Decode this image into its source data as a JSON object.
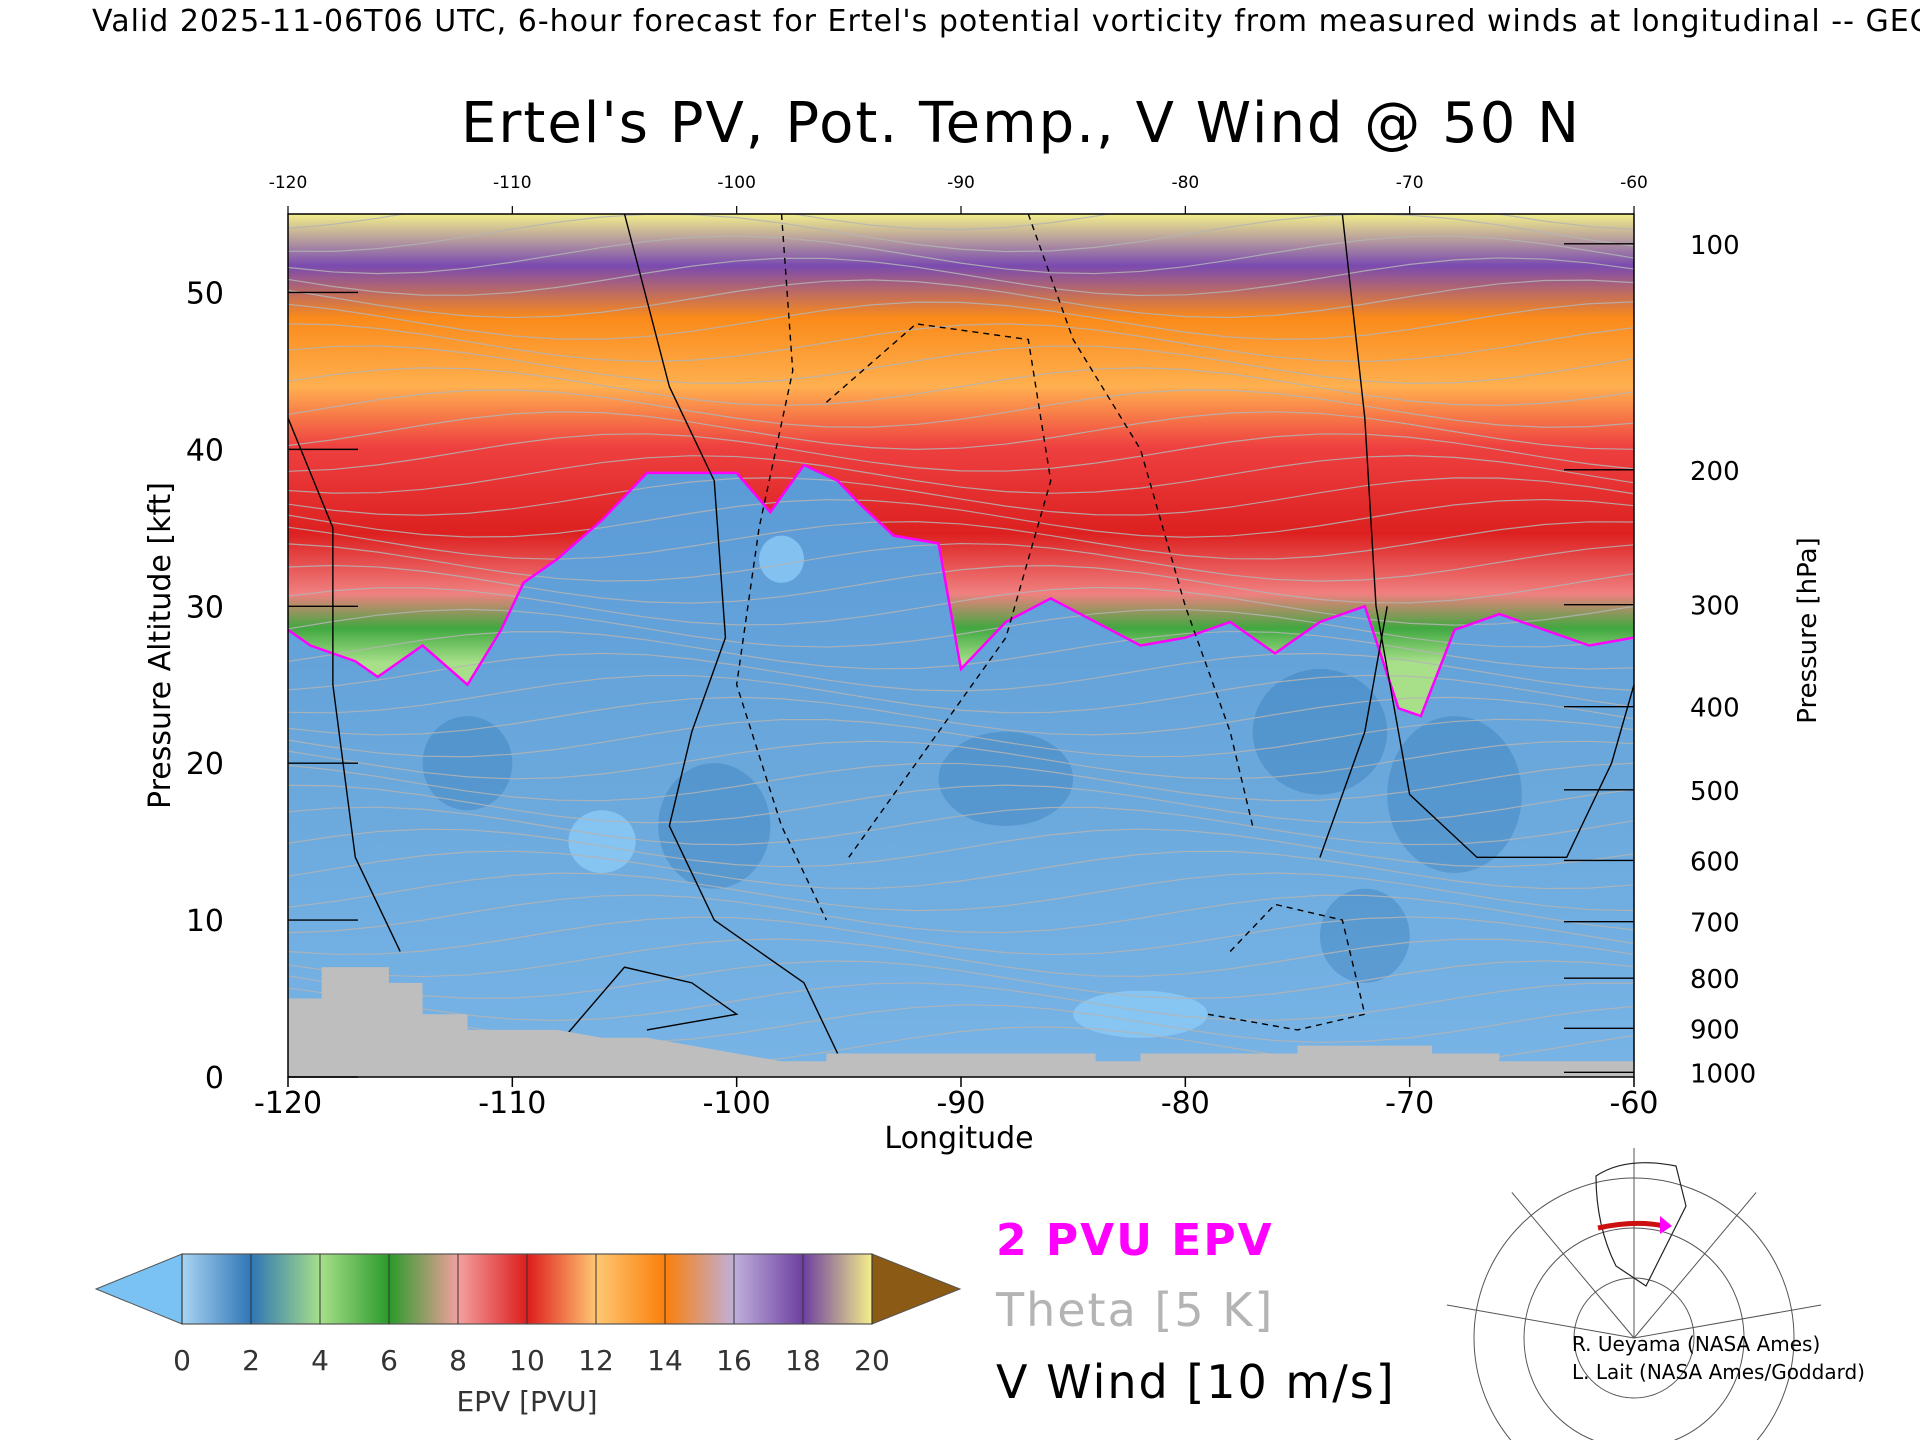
{
  "header": {
    "valid_line": "Valid 2025-11-06T06 UTC, 6-hour forecast for Ertel's potential vorticity from measured winds at longitudinal -- GEOS"
  },
  "chart_data": {
    "type": "heatmap",
    "title": "Ertel's PV, Pot. Temp., V Wind @ 50 N",
    "xlabel": "Longitude",
    "ylabel_left": "Pressure Altitude [kft]",
    "ylabel_right": "Pressure [hPa]",
    "xlim": [
      -120,
      -60
    ],
    "ylim": [
      0,
      55
    ],
    "x_ticks": [
      "-120",
      "-110",
      "-100",
      "-90",
      "-80",
      "-70",
      "-60"
    ],
    "y_ticks": [
      "0",
      "10",
      "20",
      "30",
      "40",
      "50"
    ],
    "pressure_ticks": [
      {
        "label": "100",
        "kft": 53.1
      },
      {
        "label": "200",
        "kft": 38.7
      },
      {
        "label": "300",
        "kft": 30.1
      },
      {
        "label": "400",
        "kft": 23.6
      },
      {
        "label": "500",
        "kft": 18.3
      },
      {
        "label": "600",
        "kft": 13.8
      },
      {
        "label": "700",
        "kft": 9.9
      },
      {
        "label": "800",
        "kft": 6.3
      },
      {
        "label": "900",
        "kft": 3.1
      },
      {
        "label": "1000",
        "kft": 0.3
      }
    ],
    "tropopause_2pvu_kft": [
      {
        "x": -120,
        "y": 28.5
      },
      {
        "x": -119,
        "y": 27.5
      },
      {
        "x": -117,
        "y": 26.5
      },
      {
        "x": -116,
        "y": 25.5
      },
      {
        "x": -114,
        "y": 27.5
      },
      {
        "x": -112,
        "y": 25.0
      },
      {
        "x": -110.5,
        "y": 28.5
      },
      {
        "x": -109.5,
        "y": 31.5
      },
      {
        "x": -108,
        "y": 33.0
      },
      {
        "x": -106,
        "y": 35.5
      },
      {
        "x": -104,
        "y": 38.5
      },
      {
        "x": -102,
        "y": 38.5
      },
      {
        "x": -100,
        "y": 38.5
      },
      {
        "x": -98.5,
        "y": 36.0
      },
      {
        "x": -97,
        "y": 39.0
      },
      {
        "x": -95.5,
        "y": 38.0
      },
      {
        "x": -94.5,
        "y": 36.5
      },
      {
        "x": -93,
        "y": 34.5
      },
      {
        "x": -91,
        "y": 34.0
      },
      {
        "x": -90,
        "y": 26.0
      },
      {
        "x": -88,
        "y": 29.0
      },
      {
        "x": -86,
        "y": 30.5
      },
      {
        "x": -84,
        "y": 29.0
      },
      {
        "x": -82,
        "y": 27.5
      },
      {
        "x": -80,
        "y": 28.0
      },
      {
        "x": -78,
        "y": 29.0
      },
      {
        "x": -76,
        "y": 27.0
      },
      {
        "x": -74,
        "y": 29.0
      },
      {
        "x": -72,
        "y": 30.0
      },
      {
        "x": -70.5,
        "y": 23.5
      },
      {
        "x": -69.5,
        "y": 23.0
      },
      {
        "x": -68,
        "y": 28.5
      },
      {
        "x": -66,
        "y": 29.5
      },
      {
        "x": -64,
        "y": 28.5
      },
      {
        "x": -62,
        "y": 27.5
      },
      {
        "x": -60,
        "y": 28.0
      }
    ],
    "terrain_kft": [
      {
        "x": -120,
        "y": 5.0
      },
      {
        "x": -118.5,
        "y": 5.0
      },
      {
        "x": -118.5,
        "y": 7.0
      },
      {
        "x": -115.5,
        "y": 7.0
      },
      {
        "x": -115.5,
        "y": 6.0
      },
      {
        "x": -114,
        "y": 6.0
      },
      {
        "x": -114,
        "y": 4.0
      },
      {
        "x": -112,
        "y": 4.0
      },
      {
        "x": -112,
        "y": 3.0
      },
      {
        "x": -108,
        "y": 3.0
      },
      {
        "x": -106,
        "y": 2.5
      },
      {
        "x": -104,
        "y": 2.5
      },
      {
        "x": -102,
        "y": 2.0
      },
      {
        "x": -100,
        "y": 1.5
      },
      {
        "x": -98,
        "y": 1.0
      },
      {
        "x": -96,
        "y": 1.0
      },
      {
        "x": -96,
        "y": 1.5
      },
      {
        "x": -88,
        "y": 1.5
      },
      {
        "x": -84,
        "y": 1.5
      },
      {
        "x": -84,
        "y": 1.0
      },
      {
        "x": -82,
        "y": 1.0
      },
      {
        "x": -82,
        "y": 1.5
      },
      {
        "x": -75,
        "y": 1.5
      },
      {
        "x": -75,
        "y": 2.0
      },
      {
        "x": -69,
        "y": 2.0
      },
      {
        "x": -69,
        "y": 1.5
      },
      {
        "x": -66,
        "y": 1.5
      },
      {
        "x": -66,
        "y": 1.0
      },
      {
        "x": -60,
        "y": 1.0
      }
    ],
    "colorbar": {
      "label": "EPV [PVU]",
      "tick_labels": [
        "0",
        "2",
        "4",
        "6",
        "8",
        "10",
        "12",
        "14",
        "16",
        "18",
        "20"
      ],
      "colors": [
        "#a8d4f2",
        "#2f75b5",
        "#a7e08a",
        "#2a9a2a",
        "#f4a0a0",
        "#dd1c1c",
        "#ffc773",
        "#fa7f0a",
        "#c0b0dc",
        "#6c3ea0",
        "#f6f08a",
        "#8b5a14"
      ],
      "under_color": "#7ac2f4",
      "over_color": "#8b5a14"
    },
    "legend": [
      {
        "label": "2 PVU EPV",
        "color": "#ff00ff"
      },
      {
        "label": "Theta [5 K]",
        "color": "#b4b4b4"
      },
      {
        "label": "V Wind [10 m/s]",
        "color": "#000000"
      }
    ]
  },
  "credits": {
    "line1": "R. Ueyama (NASA Ames)",
    "line2": "L. Lait (NASA Ames/Goddard)"
  }
}
